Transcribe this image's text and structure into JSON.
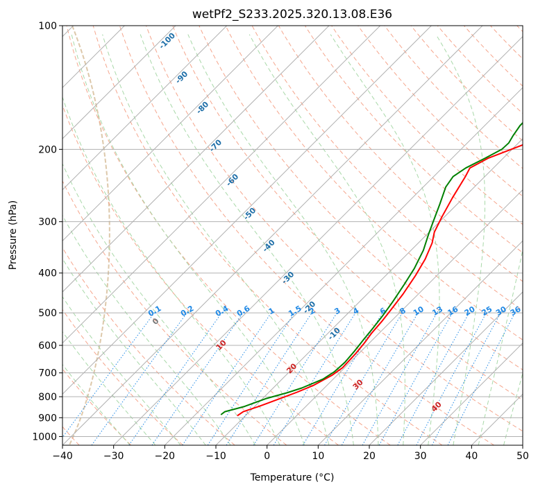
{
  "colors": {
    "temperature": "#ff0000",
    "dewpoint": "#008000",
    "isotherm": "#b0b0b0",
    "isobar": "#b0b0b0",
    "dry_adiabat": "#f5a58c",
    "moist_adiabat": "#a8d8a8",
    "mixing_ratio": "#1e88e5",
    "isotherm_label": "#1f6fa8",
    "dry_label": "#cc2222",
    "zero_label": "#777777",
    "ring": "#ddc8aa"
  },
  "chart_data": {
    "type": "line",
    "subtype": "skew-T log-P",
    "title": "wetPf2_S233.2025.320.13.08.E36",
    "xlabel": "Temperature (°C)",
    "ylabel": "Pressure (hPa)",
    "xlim": [
      -40,
      50
    ],
    "ylim": [
      1050,
      100
    ],
    "x_ticks": [
      -40,
      -30,
      -20,
      -10,
      0,
      10,
      20,
      30,
      40,
      50
    ],
    "x_tick_labels": [
      "−40",
      "−30",
      "−20",
      "−10",
      "0",
      "10",
      "20",
      "30",
      "40",
      "50"
    ],
    "y_ticks": [
      100,
      200,
      300,
      400,
      500,
      600,
      700,
      800,
      900,
      1000
    ],
    "y_tick_labels": [
      "100",
      "200",
      "300",
      "400",
      "500",
      "600",
      "700",
      "800",
      "900",
      "1000"
    ],
    "grid": true,
    "series": [
      {
        "name": "Temperature",
        "points": [
          [
            -11.6,
            890
          ],
          [
            -11.2,
            870
          ],
          [
            -9.2,
            845
          ],
          [
            -6.7,
            810
          ],
          [
            -4.5,
            780
          ],
          [
            -2.6,
            750
          ],
          [
            -1.0,
            710
          ],
          [
            -0.4,
            680
          ],
          [
            -0.6,
            630
          ],
          [
            -1.0,
            590
          ],
          [
            -1.5,
            560
          ],
          [
            -1.8,
            525
          ],
          [
            -2.3,
            490
          ],
          [
            -3.0,
            450
          ],
          [
            -4.2,
            405
          ],
          [
            -5.5,
            370
          ],
          [
            -7.3,
            338
          ],
          [
            -9.0,
            318
          ],
          [
            -10.5,
            292
          ],
          [
            -12.2,
            262
          ],
          [
            -13.8,
            233
          ],
          [
            -14.6,
            222
          ],
          [
            -12.9,
            210
          ],
          [
            -9.9,
            199
          ],
          [
            -7.3,
            190
          ],
          [
            -3.8,
            178
          ],
          [
            0.0,
            165
          ],
          [
            3.8,
            152
          ],
          [
            7.7,
            141
          ],
          [
            11.3,
            131
          ],
          [
            14.6,
            124
          ],
          [
            18.2,
            117
          ],
          [
            20.1,
            112
          ],
          [
            21.4,
            108
          ],
          [
            22.3,
            103
          ],
          [
            22.6,
            100
          ]
        ]
      },
      {
        "name": "Dewpoint",
        "points": [
          [
            -15.0,
            885
          ],
          [
            -14.8,
            870
          ],
          [
            -12.0,
            845
          ],
          [
            -9.3,
            808
          ],
          [
            -6.4,
            783
          ],
          [
            -4.4,
            762
          ],
          [
            -2.0,
            725
          ],
          [
            -1.2,
            695
          ],
          [
            -1.0,
            660
          ],
          [
            -1.3,
            620
          ],
          [
            -1.8,
            580
          ],
          [
            -2.2,
            545
          ],
          [
            -2.8,
            505
          ],
          [
            -3.5,
            470
          ],
          [
            -4.6,
            428
          ],
          [
            -5.8,
            390
          ],
          [
            -7.6,
            352
          ],
          [
            -9.7,
            322
          ],
          [
            -11.4,
            298
          ],
          [
            -13.4,
            272
          ],
          [
            -15.6,
            247
          ],
          [
            -16.2,
            233
          ],
          [
            -15.4,
            222
          ],
          [
            -13.5,
            210
          ],
          [
            -12.0,
            200
          ],
          [
            -11.9,
            193
          ],
          [
            -12.5,
            185
          ],
          [
            -13.1,
            175
          ],
          [
            -13.1,
            163
          ],
          [
            -12.2,
            152
          ],
          [
            -11.3,
            143
          ],
          [
            -9.9,
            134
          ],
          [
            -7.6,
            126
          ],
          [
            -5.4,
            118
          ],
          [
            -3.6,
            111
          ],
          [
            -2.3,
            105
          ],
          [
            -1.1,
            100
          ]
        ]
      }
    ],
    "mixing_ratio_labels": [
      "0.1",
      "0.2",
      "0.4",
      "0.6",
      "1",
      "1.5",
      "2",
      "3",
      "4",
      "6",
      "8",
      "10",
      "13",
      "16",
      "20",
      "25",
      "30",
      "36"
    ],
    "isotherm_labels": [
      "-100",
      "-90",
      "-80",
      "-70",
      "-60",
      "-50",
      "-40",
      "-30",
      "-20",
      "-10"
    ],
    "dry_adiabat_labels": [
      "0",
      "10",
      "20",
      "30",
      "40"
    ]
  }
}
